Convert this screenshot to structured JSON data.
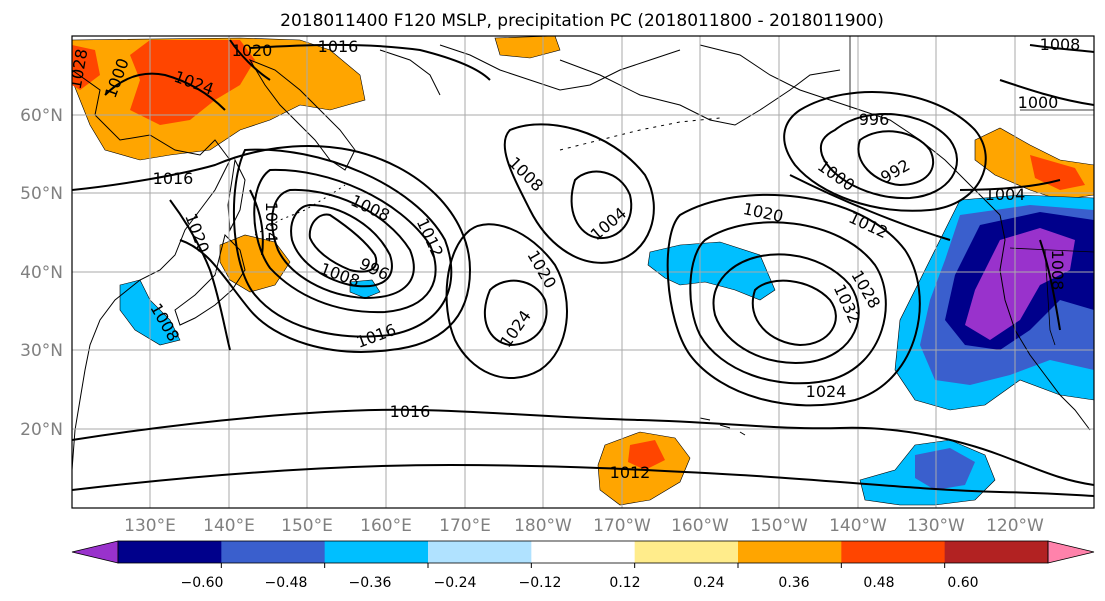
{
  "title": "2018011400 F120 MSLP, precipitation PC (2018011800 - 2018011900)",
  "lat_labels": [
    "60°N",
    "50°N",
    "40°N",
    "30°N",
    "20°N"
  ],
  "lon_labels": [
    "130°E",
    "140°E",
    "150°E",
    "160°E",
    "170°E",
    "180°W",
    "170°W",
    "160°W",
    "150°W",
    "140°W",
    "130°W",
    "120°W"
  ],
  "colorbar": {
    "colors": [
      "#9932cc",
      "#00008b",
      "#3a5fcd",
      "#00bfff",
      "#b0e2ff",
      "#ffffff",
      "#ffec8b",
      "#ffa500",
      "#ff4500",
      "#b22222",
      "#ff82ab"
    ],
    "labels": [
      "−0.60",
      "−0.48",
      "−0.36",
      "−0.24",
      "−0.12",
      "0.12",
      "0.24",
      "0.36",
      "0.48",
      "0.60"
    ]
  },
  "isobar_labels": [
    "1020",
    "1016",
    "1024",
    "1028",
    "1016",
    "1020",
    "1008",
    "1008",
    "1012",
    "1000",
    "1004",
    "1008",
    "996",
    "1016",
    "1008",
    "1004",
    "1020",
    "1024",
    "1020",
    "1012",
    "1000",
    "992",
    "996",
    "1028",
    "1032",
    "1024",
    "1000",
    "1004",
    "1008",
    "1016",
    "1012",
    "1008"
  ],
  "legend_colors": {
    "contour_line": "#000000",
    "coastline": "#000000",
    "grid": "#aaaaaa"
  }
}
